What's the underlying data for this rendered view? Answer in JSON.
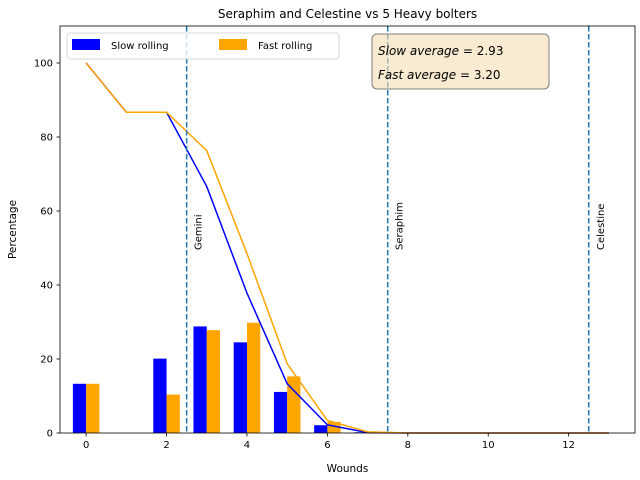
{
  "chart_data": {
    "type": "bar",
    "title": "Seraphim and Celestine vs 5 Heavy bolters",
    "xlabel": "Wounds",
    "ylabel": "Percentage",
    "xlim": [
      -0.65,
      13.65
    ],
    "ylim": [
      0,
      110
    ],
    "xticks": [
      0,
      2,
      4,
      6,
      8,
      10,
      12
    ],
    "yticks": [
      0,
      20,
      40,
      60,
      80,
      100
    ],
    "bar_width": 0.33,
    "series": [
      {
        "name": "Slow rolling",
        "color": "#0000ff",
        "bars": [
          {
            "x": 0,
            "y": 13.3
          },
          {
            "x": 2,
            "y": 20.1
          },
          {
            "x": 3,
            "y": 28.8
          },
          {
            "x": 4,
            "y": 24.5
          },
          {
            "x": 5,
            "y": 11.1
          },
          {
            "x": 6,
            "y": 2.1
          },
          {
            "x": 7,
            "y": 0.2
          }
        ],
        "line": {
          "x": [
            0,
            1,
            2,
            3,
            4,
            5,
            6,
            7,
            8,
            9,
            10,
            11,
            12,
            13
          ],
          "y": [
            100,
            86.7,
            86.7,
            66.6,
            37.8,
            13.3,
            2.2,
            0.1,
            0,
            0,
            0,
            0,
            0,
            0
          ]
        }
      },
      {
        "name": "Fast rolling",
        "color": "#ffa500",
        "bars": [
          {
            "x": 0,
            "y": 13.3
          },
          {
            "x": 2,
            "y": 10.4
          },
          {
            "x": 3,
            "y": 27.8
          },
          {
            "x": 4,
            "y": 29.8
          },
          {
            "x": 5,
            "y": 15.3
          },
          {
            "x": 6,
            "y": 3.0
          },
          {
            "x": 7,
            "y": 0.3
          }
        ],
        "line": {
          "x": [
            0,
            1,
            2,
            3,
            4,
            5,
            6,
            7,
            8,
            9,
            10,
            11,
            12,
            13
          ],
          "y": [
            100,
            86.7,
            86.7,
            76.3,
            48.5,
            18.7,
            3.4,
            0.3,
            0,
            0,
            0,
            0,
            0,
            0
          ]
        }
      }
    ],
    "vlines": [
      {
        "x": 2.5,
        "label": "Gemini"
      },
      {
        "x": 7.5,
        "label": "Seraphim"
      },
      {
        "x": 12.5,
        "label": "Celestine"
      }
    ],
    "vline_color": "#1f77b4",
    "annotation": {
      "slow_label": "Slow average",
      "slow_value": "2.93",
      "fast_label": "Fast average",
      "fast_value": "3.20"
    },
    "legend_position": "upper left",
    "grid": false
  }
}
